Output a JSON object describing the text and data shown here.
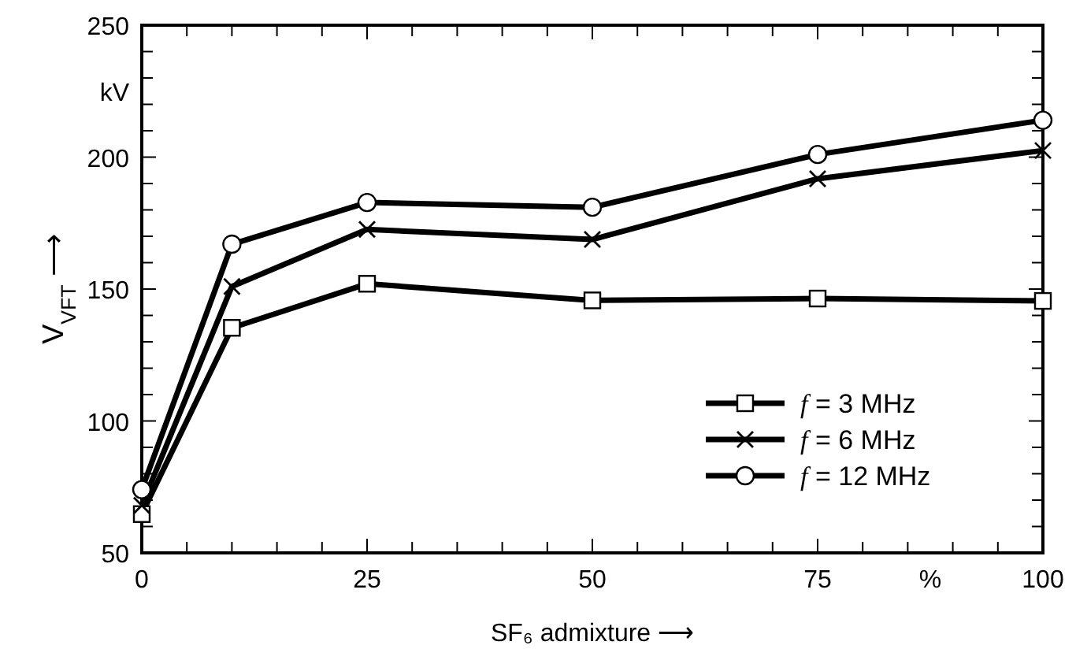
{
  "chart_data": {
    "type": "line",
    "xlabel": "SF₆ admixture ⟶",
    "ylabel": "V$_{VFT}$ ⟶",
    "annotations": [
      "kV",
      "%"
    ],
    "x": [
      0,
      10,
      25,
      50,
      75,
      100
    ],
    "series": [
      {
        "name": "f = 3 MHz",
        "color": "#000000",
        "marker": "square",
        "values": [
          64.7,
          135.3,
          152,
          145.7,
          146.4,
          145.5
        ]
      },
      {
        "name": "f = 6 MHz",
        "color": "#000000",
        "marker": "cross",
        "values": [
          68,
          151,
          172.6,
          168.8,
          191.8,
          202.5
        ]
      },
      {
        "name": "f = 12 MHz",
        "color": "#000000",
        "marker": "circle",
        "values": [
          74,
          167,
          182.8,
          181,
          201,
          214
        ]
      }
    ],
    "xlim": [
      0,
      100
    ],
    "ylim": [
      50,
      250
    ],
    "xticks": [
      0,
      {
        "value": 5,
        "label": null
      },
      {
        "value": 10,
        "label": null
      },
      {
        "value": 15,
        "label": null
      },
      {
        "value": 20,
        "label": null
      },
      25,
      {
        "value": 30,
        "label": null
      },
      {
        "value": 35,
        "label": null
      },
      {
        "value": 40,
        "label": null
      },
      {
        "value": 45,
        "label": null
      },
      50,
      {
        "value": 55,
        "label": null
      },
      {
        "value": 60,
        "label": null
      },
      {
        "value": 65,
        "label": null
      },
      {
        "value": 70,
        "label": null
      },
      75,
      {
        "value": 80,
        "label": null
      },
      {
        "value": 85,
        "label": null
      },
      {
        "value": 90,
        "label": null
      },
      {
        "value": 95,
        "label": null
      },
      100
    ],
    "yticks": [
      50,
      {
        "value": 60,
        "label": null
      },
      {
        "value": 70,
        "label": null
      },
      {
        "value": 80,
        "label": null
      },
      {
        "value": 90,
        "label": null
      },
      100,
      {
        "value": 110,
        "label": null
      },
      {
        "value": 120,
        "label": null
      },
      {
        "value": 130,
        "label": null
      },
      {
        "value": 140,
        "label": null
      },
      150,
      {
        "value": 160,
        "label": null
      },
      {
        "value": 170,
        "label": null
      },
      {
        "value": 180,
        "label": null
      },
      {
        "value": 190,
        "label": null
      },
      200,
      {
        "value": 210,
        "label": null
      },
      {
        "value": 220,
        "label": null
      },
      {
        "value": 230,
        "label": null
      },
      {
        "value": 240,
        "label": null
      },
      250
    ],
    "legend": "bottom right",
    "grid": false,
    "line_style": "solid"
  }
}
